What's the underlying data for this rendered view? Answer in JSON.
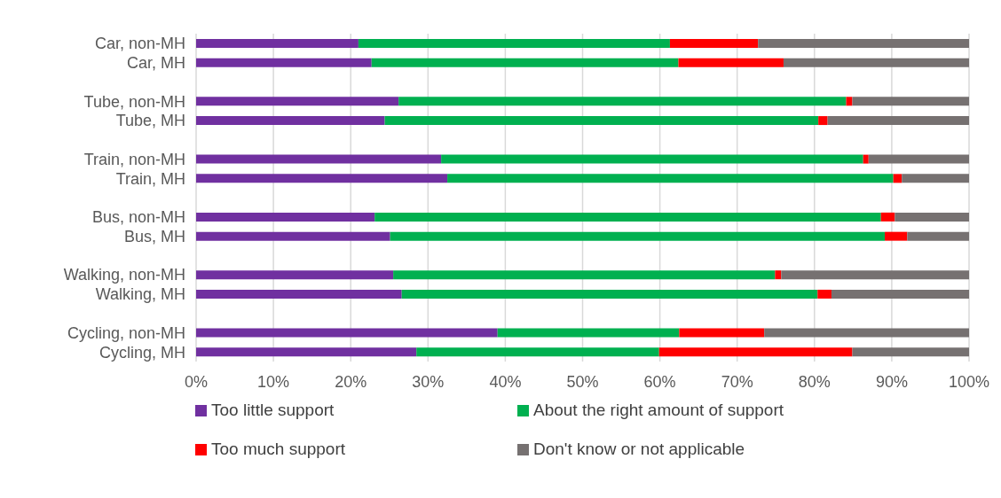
{
  "chart_data": {
    "type": "bar",
    "orientation": "horizontal",
    "stacked": true,
    "categories": [
      "Car, non-MH",
      "Car, MH",
      null,
      "Tube, non-MH",
      "Tube, MH",
      null,
      "Train, non-MH",
      "Train, MH",
      null,
      "Bus, non-MH",
      "Bus, MH",
      null,
      "Walking, non-MH",
      "Walking, MH",
      null,
      "Cycling, non-MH",
      "Cycling, MH"
    ],
    "series": [
      {
        "name": "Too little support",
        "color": "#7030a0",
        "values": [
          21.0,
          22.7,
          null,
          26.2,
          24.4,
          null,
          31.7,
          32.5,
          null,
          23.1,
          25.1,
          null,
          25.5,
          26.6,
          null,
          39.0,
          28.5
        ]
      },
      {
        "name": "About the right amount of support",
        "color": "#00b050",
        "values": [
          40.3,
          39.7,
          null,
          57.9,
          56.1,
          null,
          54.6,
          57.7,
          null,
          65.5,
          64.0,
          null,
          49.4,
          53.8,
          null,
          23.5,
          31.4
        ]
      },
      {
        "name": "Too much support",
        "color": "#ff0000",
        "values": [
          11.4,
          13.6,
          null,
          0.8,
          1.2,
          null,
          0.7,
          1.1,
          null,
          1.8,
          2.9,
          null,
          0.8,
          1.8,
          null,
          11.0,
          25.0
        ]
      },
      {
        "name": "Don't know or not applicable",
        "color": "#767171",
        "values": [
          27.3,
          24.0,
          null,
          15.1,
          18.3,
          null,
          13.0,
          8.7,
          null,
          9.6,
          8.0,
          null,
          24.3,
          17.8,
          null,
          26.5,
          15.1
        ]
      }
    ],
    "xlim": [
      0,
      100
    ],
    "xticks": [
      {
        "value": 0,
        "label": "0%"
      },
      {
        "value": 10,
        "label": "10%"
      },
      {
        "value": 20,
        "label": "20%"
      },
      {
        "value": 30,
        "label": "30%"
      },
      {
        "value": 40,
        "label": "40%"
      },
      {
        "value": 50,
        "label": "50%"
      },
      {
        "value": 60,
        "label": "60%"
      },
      {
        "value": 70,
        "label": "70%"
      },
      {
        "value": 80,
        "label": "80%"
      },
      {
        "value": 90,
        "label": "90%"
      },
      {
        "value": 100,
        "label": "100%"
      }
    ],
    "grid": "x",
    "legend": "bottom"
  }
}
